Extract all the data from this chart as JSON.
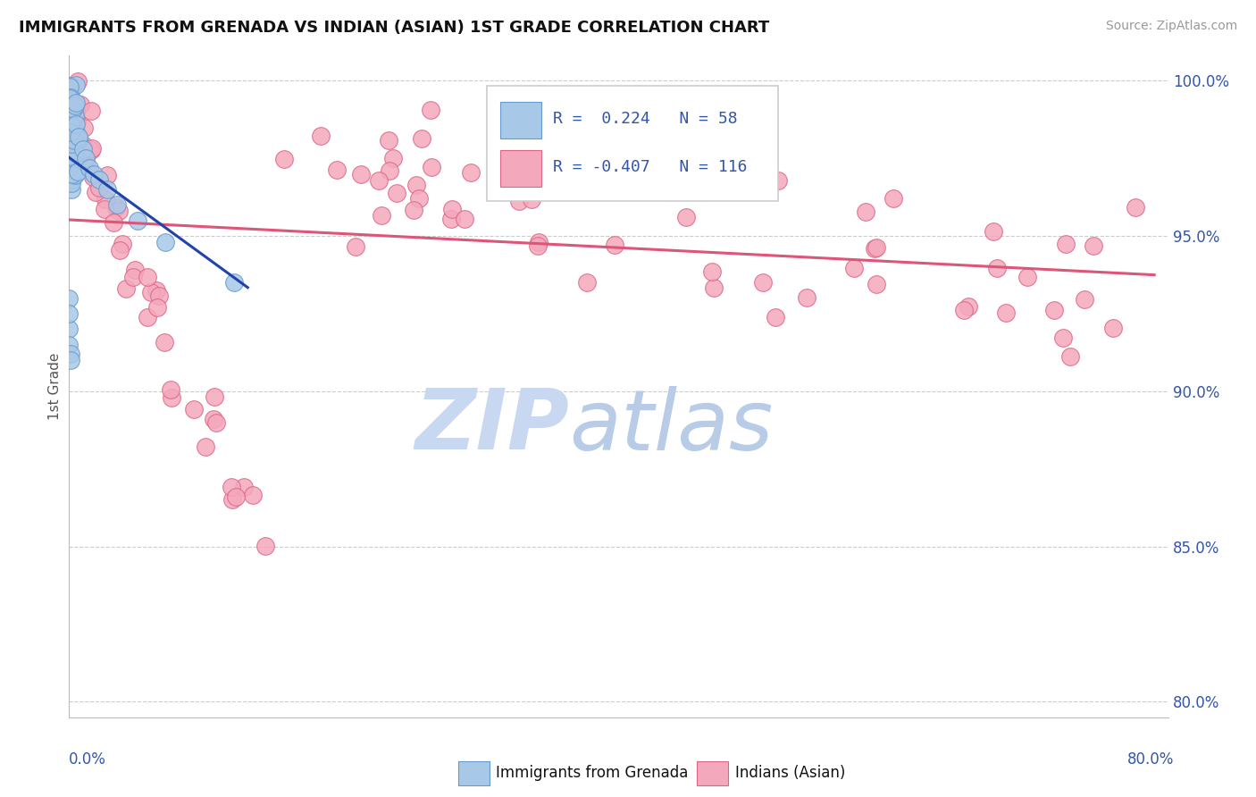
{
  "title": "IMMIGRANTS FROM GRENADA VS INDIAN (ASIAN) 1ST GRADE CORRELATION CHART",
  "source_text": "Source: ZipAtlas.com",
  "ylabel": "1st Grade",
  "xmin": 0.0,
  "xmax": 0.8,
  "ymin": 0.795,
  "ymax": 1.008,
  "y_ticks": [
    0.8,
    0.85,
    0.9,
    0.95,
    1.0
  ],
  "y_tick_labels": [
    "80.0%",
    "85.0%",
    "90.0%",
    "95.0%",
    "100.0%"
  ],
  "blue_fill": "#a8c8e8",
  "blue_edge": "#6699cc",
  "blue_line_color": "#2244aa",
  "pink_fill": "#f4a8bb",
  "pink_edge": "#dd6688",
  "pink_line_color": "#dd5577",
  "axis_label_color": "#3355aa",
  "title_color": "#111111",
  "source_color": "#999999",
  "grid_color": "#cccccc",
  "legend_r1_label": "R =  0.224   N = 58",
  "legend_r2_label": "R = -0.407   N = 116",
  "bottom_label1": "Immigrants from Grenada",
  "bottom_label2": "Indians (Asian)",
  "watermark_zip_color": "#c8d8f0",
  "watermark_atlas_color": "#b8cce8"
}
